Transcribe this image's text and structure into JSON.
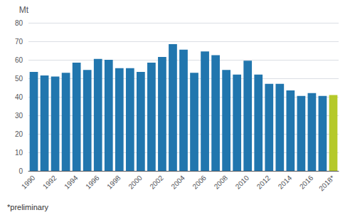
{
  "chart_data": {
    "type": "bar",
    "ylabel": "Mt",
    "annotations": [
      "*preliminary"
    ],
    "categories": [
      "1990",
      null,
      "1992",
      null,
      "1994",
      null,
      "1996",
      null,
      "1998",
      null,
      "2000",
      null,
      "2002",
      null,
      "2004",
      null,
      "2006",
      null,
      "2008",
      null,
      "2010",
      null,
      "2012",
      null,
      "2014",
      null,
      "2016",
      null,
      "2018*"
    ],
    "values": [
      53.5,
      51.5,
      51.0,
      53.0,
      58.5,
      54.5,
      60.5,
      60.0,
      55.5,
      55.5,
      53.5,
      58.5,
      61.5,
      68.5,
      65.5,
      53.0,
      64.5,
      62.5,
      54.5,
      52.0,
      59.5,
      52.0,
      47.0,
      47.0,
      43.5,
      40.5,
      42.0,
      40.5,
      41.0
    ],
    "colors": [
      "#2176ae",
      "#2176ae",
      "#2176ae",
      "#2176ae",
      "#2176ae",
      "#2176ae",
      "#2176ae",
      "#2176ae",
      "#2176ae",
      "#2176ae",
      "#2176ae",
      "#2176ae",
      "#2176ae",
      "#2176ae",
      "#2176ae",
      "#2176ae",
      "#2176ae",
      "#2176ae",
      "#2176ae",
      "#2176ae",
      "#2176ae",
      "#2176ae",
      "#2176ae",
      "#2176ae",
      "#2176ae",
      "#2176ae",
      "#2176ae",
      "#2176ae",
      "#b5c92a"
    ],
    "ylim": [
      0,
      80
    ],
    "yticks": [
      0,
      10,
      20,
      30,
      40,
      50,
      60,
      70,
      80
    ],
    "grid": true
  }
}
